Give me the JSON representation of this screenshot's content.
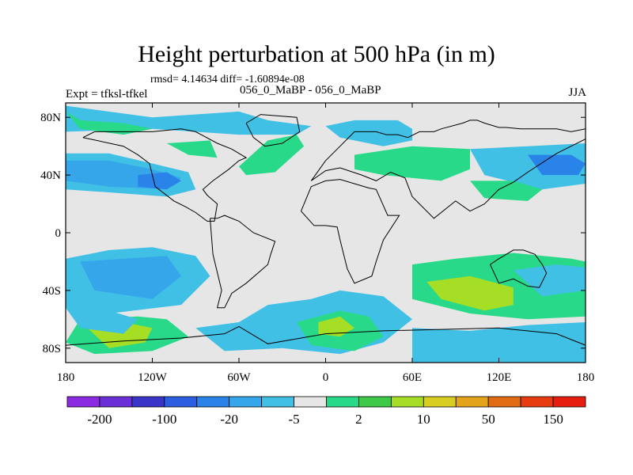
{
  "header": {
    "title": "Height perturbation at 500 hPa (in m)",
    "stats": "rmsd= 4.14634 diff= -1.60894e-08",
    "experiment": "Expt = tfksl-tfkel",
    "subtitle": "056_0_MaBP - 056_0_MaBP",
    "season": "JJA"
  },
  "map": {
    "projection": "cylindrical-equidistant",
    "lon_range": [
      -180,
      180
    ],
    "lat_range": [
      -90,
      90
    ],
    "lat_ticks": [
      {
        "lat": 80,
        "label": "80N"
      },
      {
        "lat": 40,
        "label": "40N"
      },
      {
        "lat": 0,
        "label": "0"
      },
      {
        "lat": -40,
        "label": "40S"
      },
      {
        "lat": -80,
        "label": "80S"
      }
    ],
    "lon_ticks": [
      {
        "lon": -180,
        "label": "180"
      },
      {
        "lon": -120,
        "label": "120W"
      },
      {
        "lon": -60,
        "label": "60W"
      },
      {
        "lon": 0,
        "label": "0"
      },
      {
        "lon": 60,
        "label": "60E"
      },
      {
        "lon": 120,
        "label": "120E"
      },
      {
        "lon": 180,
        "label": "180"
      }
    ]
  },
  "colorbar": {
    "colors": [
      "#8a2be2",
      "#6a2fd6",
      "#3b34c9",
      "#2b5ee0",
      "#2a83e8",
      "#36a6ea",
      "#41c0e6",
      "#e6e6e6",
      "#28d98a",
      "#3ec948",
      "#a6dd25",
      "#d8ce22",
      "#e3a41b",
      "#e06b13",
      "#e63c10",
      "#e61e10"
    ],
    "labels": [
      "-200",
      "-100",
      "-20",
      "-5",
      "2",
      "10",
      "50",
      "150"
    ]
  },
  "contours": [
    {
      "name": "nh-blue-pacific-arctic",
      "color": "#41c0e6",
      "lon": [
        -180,
        -120,
        -60,
        -40,
        -10,
        -20,
        -60,
        -120,
        -180
      ],
      "lat": [
        88,
        80,
        84,
        78,
        74,
        68,
        68,
        72,
        70
      ]
    },
    {
      "name": "nh-blue-pacific-band",
      "color": "#41c0e6",
      "lon": [
        -180,
        -150,
        -120,
        -95,
        -90,
        -110,
        -150,
        -180
      ],
      "lat": [
        55,
        55,
        48,
        42,
        30,
        25,
        28,
        30
      ]
    },
    {
      "name": "nh-deep-blue-pacific",
      "color": "#36a6ea",
      "lon": [
        -180,
        -150,
        -120,
        -100,
        -110,
        -150,
        -180
      ],
      "lat": [
        50,
        50,
        44,
        38,
        30,
        32,
        36
      ]
    },
    {
      "name": "nh-core-blue-pacific",
      "color": "#2a83e8",
      "lon": [
        -130,
        -110,
        -100,
        -110,
        -130
      ],
      "lat": [
        40,
        42,
        36,
        30,
        32
      ]
    },
    {
      "name": "nh-blue-east-asia",
      "color": "#41c0e6",
      "lon": [
        100,
        140,
        180,
        180,
        150,
        110
      ],
      "lat": [
        58,
        60,
        62,
        34,
        30,
        40
      ]
    },
    {
      "name": "nh-deep-blue-east-asia",
      "color": "#2a83e8",
      "lon": [
        140,
        170,
        180,
        175,
        150
      ],
      "lat": [
        54,
        54,
        48,
        40,
        40
      ]
    },
    {
      "name": "nh-blue-europe",
      "color": "#41c0e6",
      "lon": [
        0,
        20,
        50,
        60,
        60,
        40,
        10
      ],
      "lat": [
        74,
        78,
        78,
        72,
        64,
        60,
        66
      ]
    },
    {
      "name": "nh-green-atlantic",
      "color": "#28d98a",
      "lon": [
        -60,
        -40,
        -20,
        -15,
        -35,
        -55
      ],
      "lat": [
        46,
        64,
        68,
        60,
        42,
        40
      ]
    },
    {
      "name": "nh-green-asia",
      "color": "#28d98a",
      "lon": [
        20,
        60,
        100,
        100,
        80,
        40,
        20
      ],
      "lat": [
        54,
        60,
        58,
        44,
        36,
        40,
        44
      ]
    },
    {
      "name": "nh-green-pacific-west",
      "color": "#28d98a",
      "lon": [
        -110,
        -80,
        -75,
        -95
      ],
      "lat": [
        62,
        64,
        52,
        54
      ]
    },
    {
      "name": "nh-green-pacific-north",
      "color": "#28d98a",
      "lon": [
        -180,
        -170,
        -140,
        -120,
        -140,
        -170
      ],
      "lat": [
        84,
        78,
        76,
        72,
        68,
        72
      ]
    },
    {
      "name": "nh-green-mid-east",
      "color": "#28d98a",
      "lon": [
        100,
        130,
        150,
        140,
        110
      ],
      "lat": [
        36,
        36,
        30,
        22,
        24
      ]
    },
    {
      "name": "sh-blue-pacific",
      "color": "#41c0e6",
      "lon": [
        -180,
        -150,
        -120,
        -90,
        -80,
        -100,
        -150,
        -180
      ],
      "lat": [
        -18,
        -12,
        -10,
        -16,
        -30,
        -50,
        -56,
        -52
      ]
    },
    {
      "name": "sh-deep-blue-pacific",
      "color": "#36a6ea",
      "lon": [
        -170,
        -140,
        -110,
        -100,
        -120,
        -160
      ],
      "lat": [
        -20,
        -18,
        -16,
        -30,
        -46,
        -40
      ]
    },
    {
      "name": "sh-blue-atlantic-south",
      "color": "#41c0e6",
      "lon": [
        -90,
        -60,
        -40,
        -10,
        10,
        40,
        60,
        40,
        10,
        -30,
        -70
      ],
      "lat": [
        -66,
        -62,
        -50,
        -46,
        -40,
        -44,
        -60,
        -76,
        -84,
        -80,
        -82
      ]
    },
    {
      "name": "sh-green-south-atlantic",
      "color": "#28d98a",
      "lon": [
        -20,
        10,
        30,
        40,
        20,
        -10
      ],
      "lat": [
        -62,
        -54,
        -58,
        -72,
        -82,
        -78
      ]
    },
    {
      "name": "sh-yellow-south-atlantic",
      "color": "#a6dd25",
      "lon": [
        -5,
        10,
        20,
        10,
        -5
      ],
      "lat": [
        -62,
        -58,
        -66,
        -72,
        -70
      ]
    },
    {
      "name": "sh-green-indian",
      "color": "#28d98a",
      "lon": [
        60,
        90,
        130,
        170,
        180,
        180,
        140,
        100,
        60
      ],
      "lat": [
        -22,
        -18,
        -14,
        -18,
        -20,
        -58,
        -60,
        -56,
        -46
      ]
    },
    {
      "name": "sh-yellow-indian",
      "color": "#a6dd25",
      "lon": [
        70,
        100,
        130,
        130,
        110,
        80
      ],
      "lat": [
        -34,
        -30,
        -38,
        -50,
        -54,
        -46
      ]
    },
    {
      "name": "sh-green-west",
      "color": "#28d98a",
      "lon": [
        -170,
        -130,
        -110,
        -95,
        -120,
        -160,
        -180
      ],
      "lat": [
        -60,
        -58,
        -60,
        -72,
        -82,
        -84,
        -76
      ]
    },
    {
      "name": "sh-yellow-west",
      "color": "#a6dd25",
      "lon": [
        -165,
        -140,
        -120,
        -125,
        -150
      ],
      "lat": [
        -66,
        -62,
        -66,
        -76,
        -80
      ]
    },
    {
      "name": "sh-blue-polar",
      "color": "#41c0e6",
      "lon": [
        60,
        100,
        140,
        180,
        180,
        140,
        100,
        60
      ],
      "lat": [
        -66,
        -68,
        -64,
        -62,
        -90,
        -90,
        -90,
        -90
      ]
    },
    {
      "name": "sh-blue-pacific-south",
      "color": "#41c0e6",
      "lon": [
        -180,
        -150,
        -130,
        -140,
        -170
      ],
      "lat": [
        -52,
        -54,
        -60,
        -70,
        -66
      ]
    },
    {
      "name": "sh-blue-east-pacific",
      "color": "#41c0e6",
      "lon": [
        130,
        160,
        180,
        180,
        150
      ],
      "lat": [
        -26,
        -22,
        -24,
        -40,
        -44
      ]
    }
  ],
  "coastlines": [
    {
      "name": "north-america",
      "lon": [
        -168,
        -140,
        -130,
        -122,
        -118,
        -105,
        -97,
        -90,
        -82,
        -77,
        -75,
        -82,
        -85,
        -78,
        -67,
        -60,
        -55,
        -65,
        -75,
        -90,
        -100,
        -120,
        -140,
        -160,
        -168
      ],
      "lat": [
        66,
        60,
        54,
        48,
        32,
        22,
        18,
        14,
        8,
        8,
        20,
        26,
        30,
        36,
        44,
        50,
        52,
        58,
        62,
        70,
        72,
        70,
        70,
        70,
        66
      ]
    },
    {
      "name": "greenland",
      "lon": [
        -55,
        -45,
        -20,
        -18,
        -30,
        -42,
        -50,
        -55
      ],
      "lat": [
        76,
        82,
        80,
        70,
        62,
        60,
        66,
        76
      ]
    },
    {
      "name": "south-america",
      "lon": [
        -80,
        -75,
        -70,
        -60,
        -50,
        -35,
        -38,
        -40,
        -55,
        -65,
        -70,
        -75,
        -72,
        -78,
        -80
      ],
      "lat": [
        10,
        10,
        12,
        8,
        0,
        -6,
        -15,
        -22,
        -35,
        -42,
        -52,
        -52,
        -40,
        -15,
        10
      ]
    },
    {
      "name": "africa",
      "lon": [
        -17,
        -10,
        0,
        10,
        30,
        35,
        43,
        51,
        40,
        35,
        32,
        20,
        15,
        10,
        8,
        0,
        -8,
        -17
      ],
      "lat": [
        15,
        32,
        36,
        37,
        31,
        30,
        12,
        12,
        -5,
        -20,
        -30,
        -35,
        -25,
        -5,
        4,
        5,
        5,
        15
      ]
    },
    {
      "name": "eurasia",
      "lon": [
        -10,
        0,
        10,
        25,
        35,
        45,
        55,
        60,
        75,
        90,
        100,
        110,
        120,
        130,
        140,
        160,
        180,
        180,
        170,
        160,
        145,
        135,
        125,
        120,
        110,
        105,
        100,
        95,
        80,
        75,
        65,
        57,
        50,
        42,
        35,
        30,
        20,
        10,
        0,
        -10
      ],
      "lat": [
        36,
        43,
        45,
        40,
        36,
        42,
        38,
        25,
        10,
        22,
        15,
        20,
        30,
        35,
        42,
        55,
        65,
        72,
        70,
        72,
        72,
        72,
        73,
        73,
        76,
        78,
        78,
        76,
        72,
        70,
        70,
        66,
        68,
        68,
        70,
        70,
        70,
        60,
        50,
        36
      ]
    },
    {
      "name": "australia",
      "lon": [
        114,
        120,
        130,
        137,
        145,
        150,
        153,
        148,
        140,
        130,
        120,
        114
      ],
      "lat": [
        -22,
        -18,
        -12,
        -12,
        -15,
        -22,
        -28,
        -38,
        -37,
        -32,
        -35,
        -22
      ]
    },
    {
      "name": "antarctica",
      "lon": [
        -180,
        -140,
        -100,
        -70,
        -60,
        -40,
        0,
        40,
        80,
        120,
        160,
        180
      ],
      "lat": [
        -78,
        -75,
        -73,
        -70,
        -65,
        -77,
        -70,
        -68,
        -67,
        -66,
        -70,
        -78
      ]
    }
  ]
}
